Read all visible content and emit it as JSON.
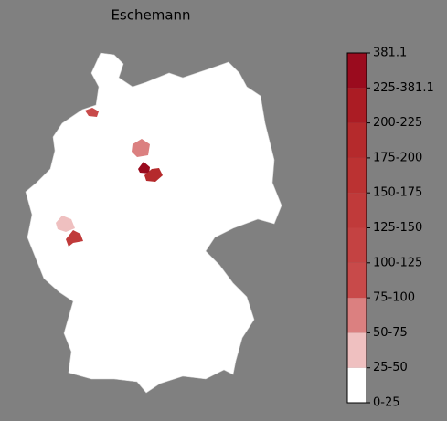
{
  "title": "Eschemann",
  "colorbar": {
    "labels": [
      "0-25",
      "25-50",
      "50-75",
      "75-100",
      "100-125",
      "125-150",
      "150-175",
      "175-200",
      "200-225",
      "225-381.1",
      "381.1"
    ],
    "colors": [
      "#ffffff",
      "#efc0c0",
      "#db8080",
      "#c84a4a",
      "#c44242",
      "#c03a3a",
      "#bb3232",
      "#b52a2c",
      "#ab1c24",
      "#9a0b1e"
    ]
  }
}
